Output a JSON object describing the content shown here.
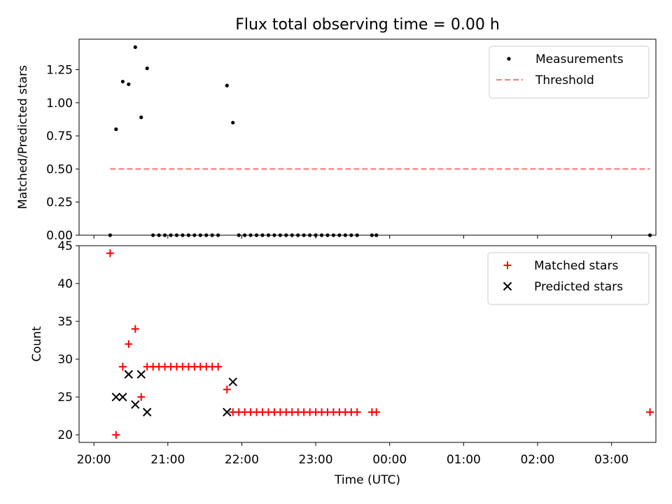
{
  "figure_title": "Flux total observing time = 0.00 h",
  "chart_data": [
    {
      "type": "scatter",
      "ylabel": "Matched/Predicted stars",
      "xlim": [
        -0.2,
        7.6
      ],
      "ylim": [
        0,
        1.48
      ],
      "yticks": [
        "0.00",
        "0.25",
        "0.50",
        "0.75",
        "1.00",
        "1.25"
      ],
      "ytick_values": [
        0,
        0.25,
        0.5,
        0.75,
        1.0,
        1.25
      ],
      "legend": {
        "position": "top-right",
        "entries": [
          {
            "label": "Measurements",
            "marker": "dot",
            "color": "#000000"
          },
          {
            "label": "Threshold",
            "marker": "dashed-line",
            "color": "#ff7f7f"
          }
        ]
      },
      "series": [
        {
          "name": "Measurements",
          "style": "dot",
          "color": "#000000",
          "x": [
            0.22,
            0.3,
            0.39,
            0.47,
            0.56,
            0.64,
            0.72,
            0.8,
            0.88,
            0.96,
            1.04,
            1.12,
            1.2,
            1.28,
            1.36,
            1.44,
            1.52,
            1.6,
            1.68,
            1.8,
            1.88,
            1.96,
            2.04,
            2.12,
            2.2,
            2.28,
            2.36,
            2.44,
            2.52,
            2.6,
            2.68,
            2.76,
            2.84,
            2.92,
            3.0,
            3.08,
            3.16,
            3.24,
            3.32,
            3.4,
            3.48,
            3.56,
            3.76,
            3.82,
            7.52
          ],
          "y": [
            0,
            0.8,
            1.16,
            1.14,
            1.42,
            0.89,
            1.26,
            0,
            0,
            0,
            0,
            0,
            0,
            0,
            0,
            0,
            0,
            0,
            0,
            1.13,
            0.85,
            0,
            0,
            0,
            0,
            0,
            0,
            0,
            0,
            0,
            0,
            0,
            0,
            0,
            0,
            0,
            0,
            0,
            0,
            0,
            0,
            0,
            0,
            0,
            0
          ]
        },
        {
          "name": "Threshold",
          "style": "dashed-line",
          "color": "#ff7f7f",
          "x": [
            0.22,
            7.52
          ],
          "y": [
            0.5,
            0.5
          ]
        }
      ]
    },
    {
      "type": "scatter",
      "xlabel": "Time (UTC)",
      "ylabel": "Count",
      "xlim": [
        -0.2,
        7.6
      ],
      "ylim": [
        19,
        45
      ],
      "xtick_values": [
        0,
        1,
        2,
        3,
        4,
        5,
        6,
        7
      ],
      "xticks": [
        "20:00",
        "21:00",
        "22:00",
        "23:00",
        "00:00",
        "01:00",
        "02:00",
        "03:00"
      ],
      "yticks": [
        "20",
        "25",
        "30",
        "35",
        "40",
        "45"
      ],
      "ytick_values": [
        20,
        25,
        30,
        35,
        40,
        45
      ],
      "legend": {
        "position": "top-right",
        "entries": [
          {
            "label": "Matched stars",
            "marker": "plus",
            "color": "#ff0000"
          },
          {
            "label": "Predicted stars",
            "marker": "x",
            "color": "#000000"
          }
        ]
      },
      "series": [
        {
          "name": "Matched stars",
          "style": "plus",
          "color": "#ff0000",
          "x": [
            0.22,
            0.3,
            0.39,
            0.47,
            0.56,
            0.64,
            0.72,
            0.8,
            0.88,
            0.96,
            1.04,
            1.12,
            1.2,
            1.28,
            1.36,
            1.44,
            1.52,
            1.6,
            1.68,
            1.8,
            1.88,
            1.96,
            2.04,
            2.12,
            2.2,
            2.28,
            2.36,
            2.44,
            2.52,
            2.6,
            2.68,
            2.76,
            2.84,
            2.92,
            3.0,
            3.08,
            3.16,
            3.24,
            3.32,
            3.4,
            3.48,
            3.56,
            3.76,
            3.82,
            7.52
          ],
          "y": [
            44,
            20,
            29,
            32,
            34,
            25,
            29,
            29,
            29,
            29,
            29,
            29,
            29,
            29,
            29,
            29,
            29,
            29,
            29,
            26,
            23,
            23,
            23,
            23,
            23,
            23,
            23,
            23,
            23,
            23,
            23,
            23,
            23,
            23,
            23,
            23,
            23,
            23,
            23,
            23,
            23,
            23,
            23,
            23,
            23
          ]
        },
        {
          "name": "Predicted stars",
          "style": "x",
          "color": "#000000",
          "x": [
            0.3,
            0.39,
            0.47,
            0.56,
            0.64,
            0.72,
            1.8,
            1.88
          ],
          "y": [
            25,
            25,
            28,
            24,
            28,
            23,
            23,
            27
          ]
        }
      ]
    }
  ]
}
